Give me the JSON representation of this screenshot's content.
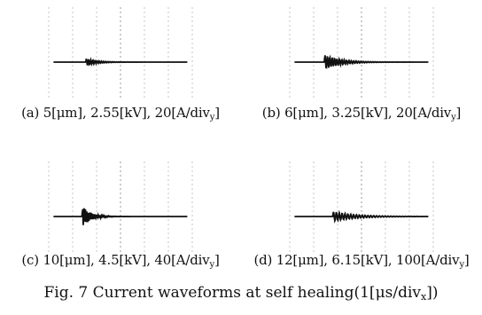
{
  "figure": {
    "caption_prefix": "Fig. 7 Current waveforms at self healing(1[",
    "caption_unit": "μs/div",
    "caption_sub": "x",
    "caption_suffix": "])"
  },
  "chart_data": [
    {
      "type": "line",
      "label_prefix": "(a) 5[μm], 2.55[kV], 20[A/div",
      "label_sub": "y",
      "label_suffix": "]",
      "thickness_um": 5,
      "voltage_kV": 2.55,
      "current_scale_A_per_div": 20,
      "time_scale_us_per_div": 1,
      "color": "#111111",
      "burst": {
        "onset_div": -1.45,
        "amplitude_div": 0.15,
        "decay_div": 0.5,
        "period_div": 0.09
      }
    },
    {
      "type": "line",
      "label_prefix": "(b) 6[μm], 3.25[kV], 20[A/div",
      "label_sub": "y",
      "label_suffix": "]",
      "thickness_um": 6,
      "voltage_kV": 3.25,
      "current_scale_A_per_div": 20,
      "time_scale_us_per_div": 1,
      "color": "#111111",
      "burst": {
        "onset_div": -1.55,
        "amplitude_div": 0.3,
        "decay_div": 0.7,
        "period_div": 0.1
      }
    },
    {
      "type": "line",
      "label_prefix": "(c) 10[μm], 4.5[kV], 40[A/div",
      "label_sub": "y",
      "label_suffix": "]",
      "thickness_um": 10,
      "voltage_kV": 4.5,
      "current_scale_A_per_div": 40,
      "time_scale_us_per_div": 1,
      "color": "#111111",
      "burst": {
        "onset_div": -1.6,
        "amplitude_div": 0.45,
        "decay_div": 0.35,
        "period_div": 0.06
      }
    },
    {
      "type": "line",
      "label_prefix": "(d) 12[μm], 6.15[kV], 100[A/div",
      "label_sub": "y",
      "label_suffix": "]",
      "thickness_um": 12,
      "voltage_kV": 6.15,
      "current_scale_A_per_div": 100,
      "time_scale_us_per_div": 1,
      "color": "#111111",
      "burst": {
        "onset_div": -1.2,
        "amplitude_div": 0.2,
        "decay_div": 1.0,
        "period_div": 0.12
      }
    }
  ]
}
